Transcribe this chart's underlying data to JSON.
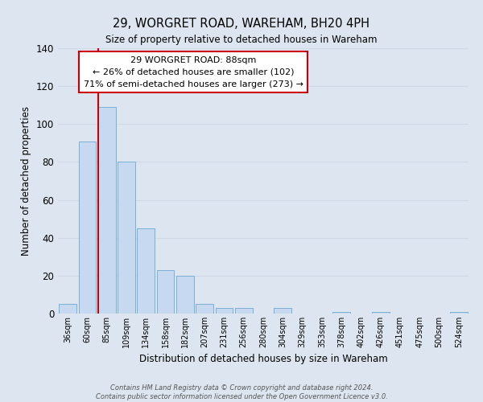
{
  "title": "29, WORGRET ROAD, WAREHAM, BH20 4PH",
  "subtitle": "Size of property relative to detached houses in Wareham",
  "xlabel": "Distribution of detached houses by size in Wareham",
  "ylabel": "Number of detached properties",
  "bar_labels": [
    "36sqm",
    "60sqm",
    "85sqm",
    "109sqm",
    "134sqm",
    "158sqm",
    "182sqm",
    "207sqm",
    "231sqm",
    "256sqm",
    "280sqm",
    "304sqm",
    "329sqm",
    "353sqm",
    "378sqm",
    "402sqm",
    "426sqm",
    "451sqm",
    "475sqm",
    "500sqm",
    "524sqm"
  ],
  "bar_heights": [
    5,
    91,
    109,
    80,
    45,
    23,
    20,
    5,
    3,
    3,
    0,
    3,
    0,
    0,
    1,
    0,
    1,
    0,
    0,
    0,
    1
  ],
  "bar_color": "#c6d9f0",
  "bar_edge_color": "#7aafd4",
  "ylim": [
    0,
    140
  ],
  "yticks": [
    0,
    20,
    40,
    60,
    80,
    100,
    120,
    140
  ],
  "property_line_color": "#cc0000",
  "annotation_title": "29 WORGRET ROAD: 88sqm",
  "annotation_line1": "← 26% of detached houses are smaller (102)",
  "annotation_line2": "71% of semi-detached houses are larger (273) →",
  "annotation_box_color": "#ffffff",
  "annotation_box_edge": "#cc0000",
  "grid_color": "#d0d8e8",
  "background_color": "#dde5f0",
  "plot_bg_color": "#dde5f0",
  "footer_line1": "Contains HM Land Registry data © Crown copyright and database right 2024.",
  "footer_line2": "Contains public sector information licensed under the Open Government Licence v3.0."
}
